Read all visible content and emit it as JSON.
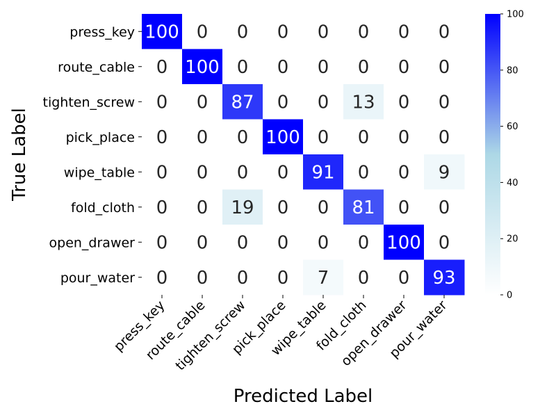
{
  "chart_data": {
    "type": "heatmap",
    "title": "",
    "xlabel": "Predicted Label",
    "ylabel": "True Label",
    "x_categories": [
      "press_key",
      "route_cable",
      "tighten_screw",
      "pick_place",
      "wipe_table",
      "fold_cloth",
      "open_drawer",
      "pour_water"
    ],
    "y_categories": [
      "press_key",
      "route_cable",
      "tighten_screw",
      "pick_place",
      "wipe_table",
      "fold_cloth",
      "open_drawer",
      "pour_water"
    ],
    "values": [
      [
        100,
        0,
        0,
        0,
        0,
        0,
        0,
        0
      ],
      [
        0,
        100,
        0,
        0,
        0,
        0,
        0,
        0
      ],
      [
        0,
        0,
        87,
        0,
        0,
        13,
        0,
        0
      ],
      [
        0,
        0,
        0,
        100,
        0,
        0,
        0,
        0
      ],
      [
        0,
        0,
        0,
        0,
        91,
        0,
        0,
        9
      ],
      [
        0,
        0,
        19,
        0,
        0,
        81,
        0,
        0
      ],
      [
        0,
        0,
        0,
        0,
        0,
        0,
        100,
        0
      ],
      [
        0,
        0,
        0,
        0,
        7,
        0,
        0,
        93
      ]
    ],
    "value_range": [
      0,
      100
    ],
    "colorbar_ticks": [
      0,
      20,
      40,
      60,
      80,
      100
    ],
    "colormap": [
      "#ffffff",
      "#add8e6",
      "#0000ff"
    ]
  }
}
